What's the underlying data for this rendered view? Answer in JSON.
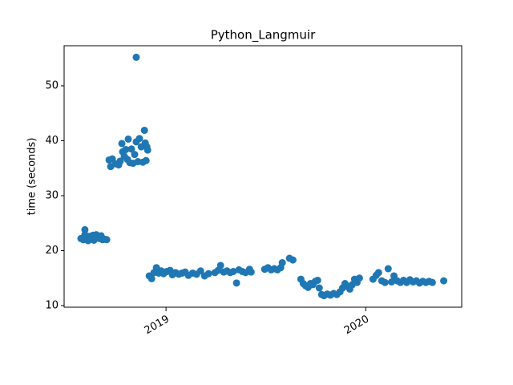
{
  "chart_data": {
    "type": "scatter",
    "title": "Python_Langmuir",
    "y_label": "time (seconds)",
    "color": "#1f77b4",
    "xlim": [
      2018.49,
      2020.48
    ],
    "xticks": [
      2019,
      2020
    ],
    "ylim": [
      9.7,
      57.3
    ],
    "yticks": [
      10,
      20,
      30,
      40,
      50
    ],
    "x": [
      2018.574,
      2018.586,
      2018.594,
      2018.602,
      2018.61,
      2018.618,
      2018.627,
      2018.635,
      2018.643,
      2018.651,
      2018.659,
      2018.667,
      2018.675,
      2018.683,
      2018.691,
      2018.703,
      2018.594,
      2018.639,
      2018.715,
      2018.723,
      2018.731,
      2018.747,
      2018.763,
      2018.771,
      2018.779,
      2018.783,
      2018.791,
      2018.799,
      2018.807,
      2018.811,
      2018.819,
      2018.827,
      2018.835,
      2018.843,
      2018.851,
      2018.851,
      2018.859,
      2018.867,
      2018.876,
      2018.884,
      2018.892,
      2018.896,
      2018.9,
      2018.908,
      2018.904,
      2018.916,
      2018.928,
      2018.94,
      2018.952,
      2018.964,
      2018.976,
      2018.988,
      2019.004,
      2019.02,
      2019.032,
      2019.048,
      2019.064,
      2019.08,
      2019.096,
      2019.112,
      2019.133,
      2019.153,
      2019.173,
      2019.193,
      2019.213,
      2019.245,
      2019.261,
      2019.273,
      2019.289,
      2019.305,
      2019.321,
      2019.337,
      2019.353,
      2019.365,
      2019.382,
      2019.398,
      2019.418,
      2019.426,
      2019.494,
      2019.51,
      2019.526,
      2019.542,
      2019.558,
      2019.574,
      2019.582,
      2019.618,
      2019.635,
      2019.675,
      2019.687,
      2019.699,
      2019.711,
      2019.723,
      2019.735,
      2019.747,
      2019.759,
      2019.767,
      2019.779,
      2019.791,
      2019.807,
      2019.823,
      2019.839,
      2019.855,
      2019.871,
      2019.884,
      2019.896,
      2019.908,
      2019.92,
      2019.932,
      2019.944,
      2019.956,
      2019.968,
      2020.036,
      2020.052,
      2020.064,
      2020.08,
      2020.096,
      2020.112,
      2020.129,
      2020.141,
      2020.157,
      2020.173,
      2020.189,
      2020.205,
      2020.221,
      2020.237,
      2020.253,
      2020.269,
      2020.285,
      2020.301,
      2020.317,
      2020.333,
      2020.39
    ],
    "values": [
      22.2,
      22.0,
      23.8,
      22.5,
      21.8,
      22.6,
      22.3,
      22.8,
      22.1,
      22.9,
      22.4,
      22.2,
      22.7,
      22.0,
      22.1,
      22.0,
      22.9,
      21.9,
      36.5,
      35.3,
      36.7,
      35.8,
      35.6,
      36.3,
      39.5,
      38.0,
      37.2,
      38.4,
      36.6,
      40.3,
      36.0,
      38.5,
      35.9,
      37.5,
      55.2,
      39.8,
      36.2,
      40.4,
      38.9,
      36.1,
      41.9,
      39.6,
      36.4,
      38.3,
      38.9,
      15.4,
      14.9,
      16.0,
      16.9,
      15.9,
      16.3,
      15.8,
      16.2,
      16.4,
      15.6,
      16.0,
      15.7,
      15.9,
      16.1,
      15.5,
      15.9,
      15.7,
      16.3,
      15.4,
      15.8,
      16.0,
      16.4,
      17.3,
      16.1,
      16.3,
      16.0,
      16.2,
      14.1,
      16.5,
      16.2,
      16.0,
      16.6,
      16.1,
      16.6,
      16.9,
      16.5,
      16.7,
      16.5,
      16.9,
      17.8,
      18.6,
      18.3,
      14.8,
      14.0,
      13.6,
      13.3,
      14.0,
      13.8,
      14.4,
      14.6,
      13.2,
      12.0,
      11.8,
      12.1,
      11.9,
      12.2,
      12.0,
      12.5,
      13.2,
      14.0,
      13.5,
      13.0,
      13.8,
      14.8,
      14.2,
      15.0,
      14.8,
      15.5,
      16.0,
      14.5,
      14.2,
      16.7,
      14.3,
      15.4,
      14.5,
      14.2,
      14.6,
      14.2,
      14.7,
      14.3,
      14.5,
      14.1,
      14.4,
      14.2,
      14.4,
      14.2,
      14.5
    ]
  }
}
